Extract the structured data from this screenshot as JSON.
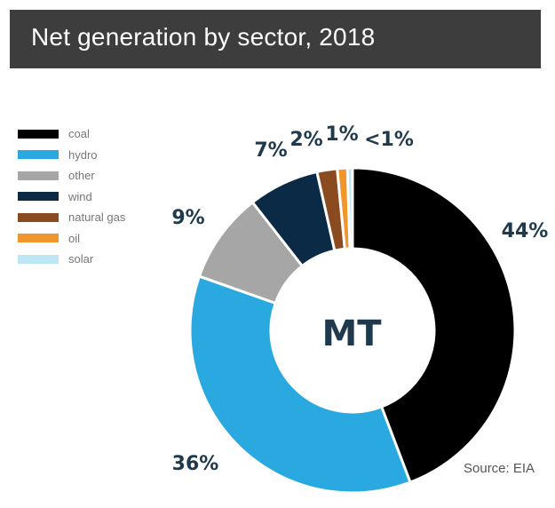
{
  "chart_data": {
    "type": "pie",
    "title": "Net generation by sector, 2018",
    "center_label": "MT",
    "source": "Source: EIA",
    "categories": [
      "coal",
      "hydro",
      "other",
      "wind",
      "natural gas",
      "oil",
      "solar"
    ],
    "values": [
      44,
      36,
      9,
      7,
      2,
      1,
      0.5
    ],
    "labels": [
      "44%",
      "36%",
      "9%",
      "7%",
      "2%",
      "1%",
      "<1%"
    ],
    "colors": [
      "#000000",
      "#29a9e0",
      "#a6a6a6",
      "#0a2a45",
      "#8a4b20",
      "#f0962b",
      "#bfe6f5"
    ],
    "legend_position": "left"
  }
}
